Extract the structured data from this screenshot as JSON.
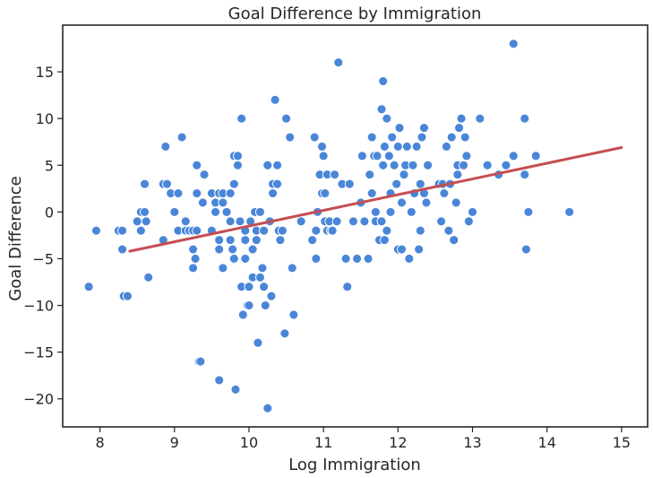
{
  "chart_data": {
    "type": "scatter",
    "title": "Goal Difference by Immigration",
    "xlabel": "Log Immigration",
    "ylabel": "Goal Difference",
    "xlim": [
      7.5,
      15.35
    ],
    "ylim": [
      -23,
      20
    ],
    "xticks": [
      8,
      9,
      10,
      11,
      12,
      13,
      14,
      15
    ],
    "yticks": [
      -20,
      -15,
      -10,
      -5,
      0,
      5,
      10,
      15
    ],
    "grid": false,
    "colors": {
      "points": "#4a86d8",
      "point_edge": "#ffffff",
      "trend_line": "#c44e52",
      "axes": "#262626"
    },
    "trend_line": {
      "x": [
        8.4,
        15.0
      ],
      "y": [
        -4.2,
        6.9
      ]
    },
    "points": [
      [
        7.85,
        -8
      ],
      [
        7.95,
        -2
      ],
      [
        8.25,
        -2
      ],
      [
        8.3,
        -2
      ],
      [
        8.3,
        -4
      ],
      [
        8.32,
        -9
      ],
      [
        8.37,
        -9
      ],
      [
        8.5,
        -1
      ],
      [
        8.55,
        -2
      ],
      [
        8.55,
        0
      ],
      [
        8.6,
        0
      ],
      [
        8.6,
        3
      ],
      [
        8.62,
        -1
      ],
      [
        8.65,
        -7
      ],
      [
        8.85,
        -3
      ],
      [
        8.85,
        3
      ],
      [
        8.9,
        3
      ],
      [
        8.88,
        7
      ],
      [
        8.95,
        2
      ],
      [
        9.0,
        0
      ],
      [
        9.05,
        -2
      ],
      [
        9.05,
        2
      ],
      [
        9.1,
        8
      ],
      [
        9.15,
        -1
      ],
      [
        9.15,
        -2
      ],
      [
        9.2,
        -2
      ],
      [
        9.25,
        -2
      ],
      [
        9.25,
        -6
      ],
      [
        9.25,
        -4
      ],
      [
        9.28,
        -5
      ],
      [
        9.3,
        2
      ],
      [
        9.3,
        -2
      ],
      [
        9.3,
        5
      ],
      [
        9.33,
        -16
      ],
      [
        9.35,
        -16
      ],
      [
        9.38,
        1
      ],
      [
        9.4,
        4
      ],
      [
        9.5,
        -2
      ],
      [
        9.5,
        2
      ],
      [
        9.55,
        1
      ],
      [
        9.55,
        0
      ],
      [
        9.6,
        -3
      ],
      [
        9.6,
        -4
      ],
      [
        9.6,
        2
      ],
      [
        9.6,
        -18
      ],
      [
        9.65,
        -6
      ],
      [
        9.65,
        2
      ],
      [
        9.65,
        1
      ],
      [
        9.7,
        0
      ],
      [
        9.75,
        -3
      ],
      [
        9.75,
        -1
      ],
      [
        9.75,
        2
      ],
      [
        9.78,
        -4
      ],
      [
        9.8,
        -5
      ],
      [
        9.8,
        3
      ],
      [
        9.8,
        6
      ],
      [
        9.82,
        -19
      ],
      [
        9.85,
        6
      ],
      [
        9.85,
        5
      ],
      [
        9.88,
        -1
      ],
      [
        9.9,
        10
      ],
      [
        9.9,
        -8
      ],
      [
        9.92,
        -11
      ],
      [
        9.95,
        -5
      ],
      [
        9.95,
        -3
      ],
      [
        9.95,
        -2
      ],
      [
        9.98,
        -10
      ],
      [
        10.0,
        -8
      ],
      [
        10.0,
        -10
      ],
      [
        10.02,
        -1
      ],
      [
        10.05,
        -4
      ],
      [
        10.05,
        -7
      ],
      [
        10.08,
        0
      ],
      [
        10.1,
        -2
      ],
      [
        10.1,
        -3
      ],
      [
        10.12,
        -14
      ],
      [
        10.15,
        0
      ],
      [
        10.15,
        -7
      ],
      [
        10.18,
        -6
      ],
      [
        10.2,
        -2
      ],
      [
        10.2,
        -8
      ],
      [
        10.22,
        -10
      ],
      [
        10.25,
        5
      ],
      [
        10.25,
        -21
      ],
      [
        10.28,
        -1
      ],
      [
        10.3,
        -9
      ],
      [
        10.32,
        2
      ],
      [
        10.32,
        3
      ],
      [
        10.35,
        12
      ],
      [
        10.38,
        5
      ],
      [
        10.38,
        3
      ],
      [
        10.4,
        -2
      ],
      [
        10.42,
        -3
      ],
      [
        10.45,
        -2
      ],
      [
        10.48,
        -13
      ],
      [
        10.5,
        10
      ],
      [
        10.55,
        8
      ],
      [
        10.58,
        -6
      ],
      [
        10.6,
        -11
      ],
      [
        10.7,
        -1
      ],
      [
        10.85,
        -3
      ],
      [
        10.88,
        8
      ],
      [
        10.9,
        -2
      ],
      [
        10.9,
        -5
      ],
      [
        10.92,
        0
      ],
      [
        10.95,
        4
      ],
      [
        10.98,
        2
      ],
      [
        10.98,
        7
      ],
      [
        11.0,
        6
      ],
      [
        11.02,
        2
      ],
      [
        11.02,
        -1
      ],
      [
        11.05,
        4
      ],
      [
        11.05,
        -2
      ],
      [
        11.08,
        -1
      ],
      [
        11.1,
        -2
      ],
      [
        11.12,
        -2
      ],
      [
        11.15,
        4
      ],
      [
        11.18,
        -1
      ],
      [
        11.2,
        16
      ],
      [
        11.25,
        3
      ],
      [
        11.3,
        -5
      ],
      [
        11.32,
        -8
      ],
      [
        11.35,
        3
      ],
      [
        11.4,
        -1
      ],
      [
        11.45,
        -5
      ],
      [
        11.5,
        1
      ],
      [
        11.52,
        6
      ],
      [
        11.55,
        -1
      ],
      [
        11.6,
        -5
      ],
      [
        11.62,
        4
      ],
      [
        11.65,
        8
      ],
      [
        11.65,
        2
      ],
      [
        11.68,
        6
      ],
      [
        11.7,
        -1
      ],
      [
        11.7,
        0
      ],
      [
        11.72,
        6
      ],
      [
        11.75,
        -3
      ],
      [
        11.78,
        -1
      ],
      [
        11.78,
        11
      ],
      [
        11.8,
        14
      ],
      [
        11.8,
        5
      ],
      [
        11.82,
        7
      ],
      [
        11.82,
        -3
      ],
      [
        11.85,
        10
      ],
      [
        11.85,
        -2
      ],
      [
        11.88,
        6
      ],
      [
        11.9,
        0
      ],
      [
        11.9,
        2
      ],
      [
        11.92,
        8
      ],
      [
        11.95,
        5
      ],
      [
        11.98,
        3
      ],
      [
        12.0,
        7
      ],
      [
        12.0,
        -4
      ],
      [
        12.02,
        9
      ],
      [
        12.05,
        1
      ],
      [
        12.05,
        -4
      ],
      [
        12.08,
        4
      ],
      [
        12.1,
        5
      ],
      [
        12.12,
        7
      ],
      [
        12.15,
        -5
      ],
      [
        12.18,
        0
      ],
      [
        12.2,
        5
      ],
      [
        12.22,
        2
      ],
      [
        12.25,
        7
      ],
      [
        12.28,
        -4
      ],
      [
        12.3,
        -2
      ],
      [
        12.3,
        3
      ],
      [
        12.32,
        8
      ],
      [
        12.35,
        9
      ],
      [
        12.35,
        2
      ],
      [
        12.38,
        1
      ],
      [
        12.4,
        5
      ],
      [
        12.55,
        3
      ],
      [
        12.58,
        -1
      ],
      [
        12.6,
        3
      ],
      [
        12.62,
        2
      ],
      [
        12.65,
        7
      ],
      [
        12.68,
        -2
      ],
      [
        12.7,
        3
      ],
      [
        12.72,
        8
      ],
      [
        12.75,
        -3
      ],
      [
        12.78,
        1
      ],
      [
        12.8,
        4
      ],
      [
        12.8,
        5
      ],
      [
        12.82,
        9
      ],
      [
        12.85,
        10
      ],
      [
        12.88,
        5
      ],
      [
        12.9,
        8
      ],
      [
        12.92,
        6
      ],
      [
        12.95,
        -1
      ],
      [
        13.0,
        0
      ],
      [
        13.1,
        10
      ],
      [
        13.2,
        5
      ],
      [
        13.35,
        4
      ],
      [
        13.45,
        5
      ],
      [
        13.55,
        6
      ],
      [
        13.55,
        18
      ],
      [
        13.7,
        10
      ],
      [
        13.7,
        4
      ],
      [
        13.72,
        -4
      ],
      [
        13.75,
        0
      ],
      [
        13.85,
        6
      ],
      [
        14.3,
        0
      ]
    ]
  }
}
